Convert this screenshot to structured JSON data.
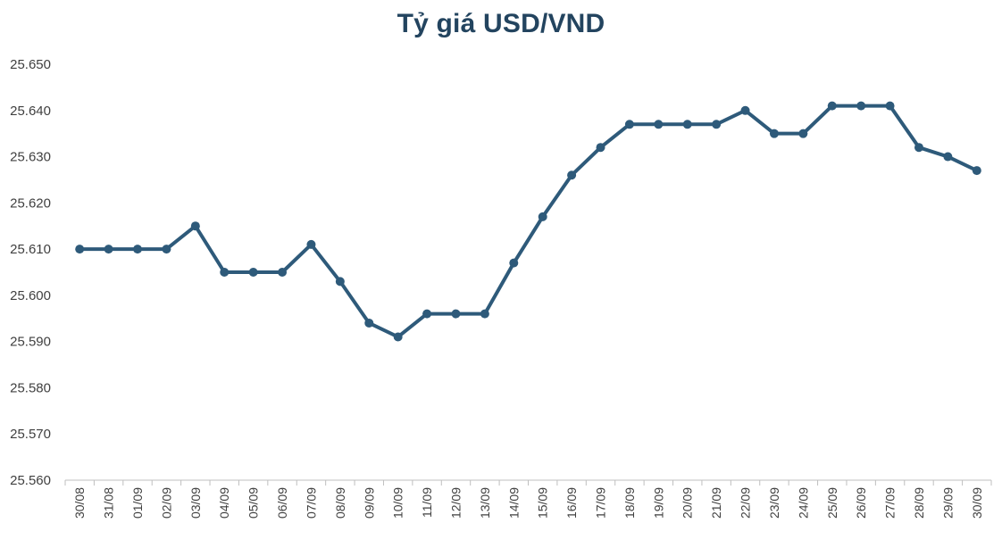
{
  "chart_data": {
    "type": "line",
    "title": "Tỷ giá USD/VND",
    "xlabel": "",
    "ylabel": "",
    "categories": [
      "30/08",
      "31/08",
      "01/09",
      "02/09",
      "03/09",
      "04/09",
      "05/09",
      "06/09",
      "07/09",
      "08/09",
      "09/09",
      "10/09",
      "11/09",
      "12/09",
      "13/09",
      "14/09",
      "15/09",
      "16/09",
      "17/09",
      "18/09",
      "19/09",
      "20/09",
      "21/09",
      "22/09",
      "23/09",
      "24/09",
      "25/09",
      "26/09",
      "27/09",
      "28/09",
      "29/09",
      "30/09"
    ],
    "values": [
      25610,
      25610,
      25610,
      25610,
      25615,
      25605,
      25605,
      25605,
      25611,
      25603,
      25594,
      25591,
      25596,
      25596,
      25596,
      25607,
      25617,
      25626,
      25632,
      25637,
      25637,
      25637,
      25637,
      25640,
      25635,
      25635,
      25641,
      25641,
      25641,
      25632,
      25630,
      25627
    ],
    "ylim": [
      25560,
      25650
    ],
    "y_ticks": [
      25560,
      25570,
      25580,
      25590,
      25600,
      25610,
      25620,
      25630,
      25640,
      25650
    ],
    "y_tick_labels": [
      "25.560",
      "25.570",
      "25.580",
      "25.590",
      "25.600",
      "25.610",
      "25.620",
      "25.630",
      "25.640",
      "25.650"
    ],
    "grid": false,
    "legend": "none",
    "line_color": "#2e5a7a",
    "axis_color": "#bfbfbf"
  }
}
